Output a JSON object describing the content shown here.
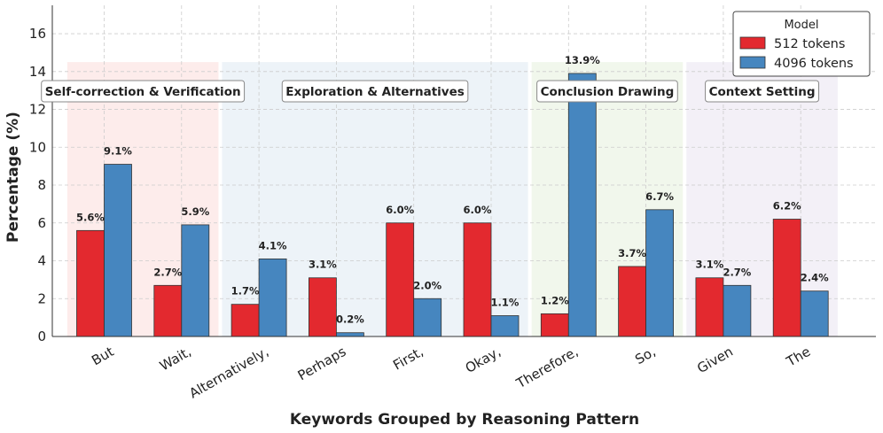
{
  "chart_data": {
    "type": "bar",
    "title": "",
    "xlabel": "Keywords Grouped by Reasoning Pattern",
    "ylabel": "Percentage (%)",
    "ylim": [
      0,
      17.5
    ],
    "yticks": [
      0,
      2,
      4,
      6,
      8,
      10,
      12,
      14,
      16
    ],
    "grid": true,
    "categories": [
      "But",
      "Wait,",
      "Alternatively,",
      "Perhaps",
      "First,",
      "Okay,",
      "Therefore,",
      "So,",
      "Given",
      "The"
    ],
    "series": [
      {
        "name": "512 tokens",
        "color": "#e3292f",
        "values": [
          5.6,
          2.7,
          1.7,
          3.1,
          6.0,
          6.0,
          1.2,
          3.7,
          3.1,
          6.2
        ],
        "labels": [
          "5.6%",
          "2.7%",
          "1.7%",
          "3.1%",
          "6.0%",
          "6.0%",
          "1.2%",
          "3.7%",
          "3.1%",
          "6.2%"
        ]
      },
      {
        "name": "4096 tokens",
        "color": "#4686bf",
        "values": [
          9.1,
          5.9,
          4.1,
          0.2,
          2.0,
          1.1,
          13.9,
          6.7,
          2.7,
          2.4
        ],
        "labels": [
          "9.1%",
          "5.9%",
          "4.1%",
          "0.2%",
          "2.0%",
          "1.1%",
          "13.9%",
          "6.7%",
          "2.7%",
          "2.4%"
        ]
      }
    ],
    "groups": [
      {
        "name": "Self-correction & Verification",
        "start": 0,
        "end": 1,
        "color": "#fdeceb"
      },
      {
        "name": "Exploration & Alternatives",
        "start": 2,
        "end": 5,
        "color": "#edf3f8"
      },
      {
        "name": "Conclusion Drawing",
        "start": 6,
        "end": 7,
        "color": "#f1f7ec"
      },
      {
        "name": "Context Setting",
        "start": 8,
        "end": 9,
        "color": "#f3f0f7"
      }
    ],
    "legend": {
      "title": "Model",
      "position": "top-right"
    }
  }
}
